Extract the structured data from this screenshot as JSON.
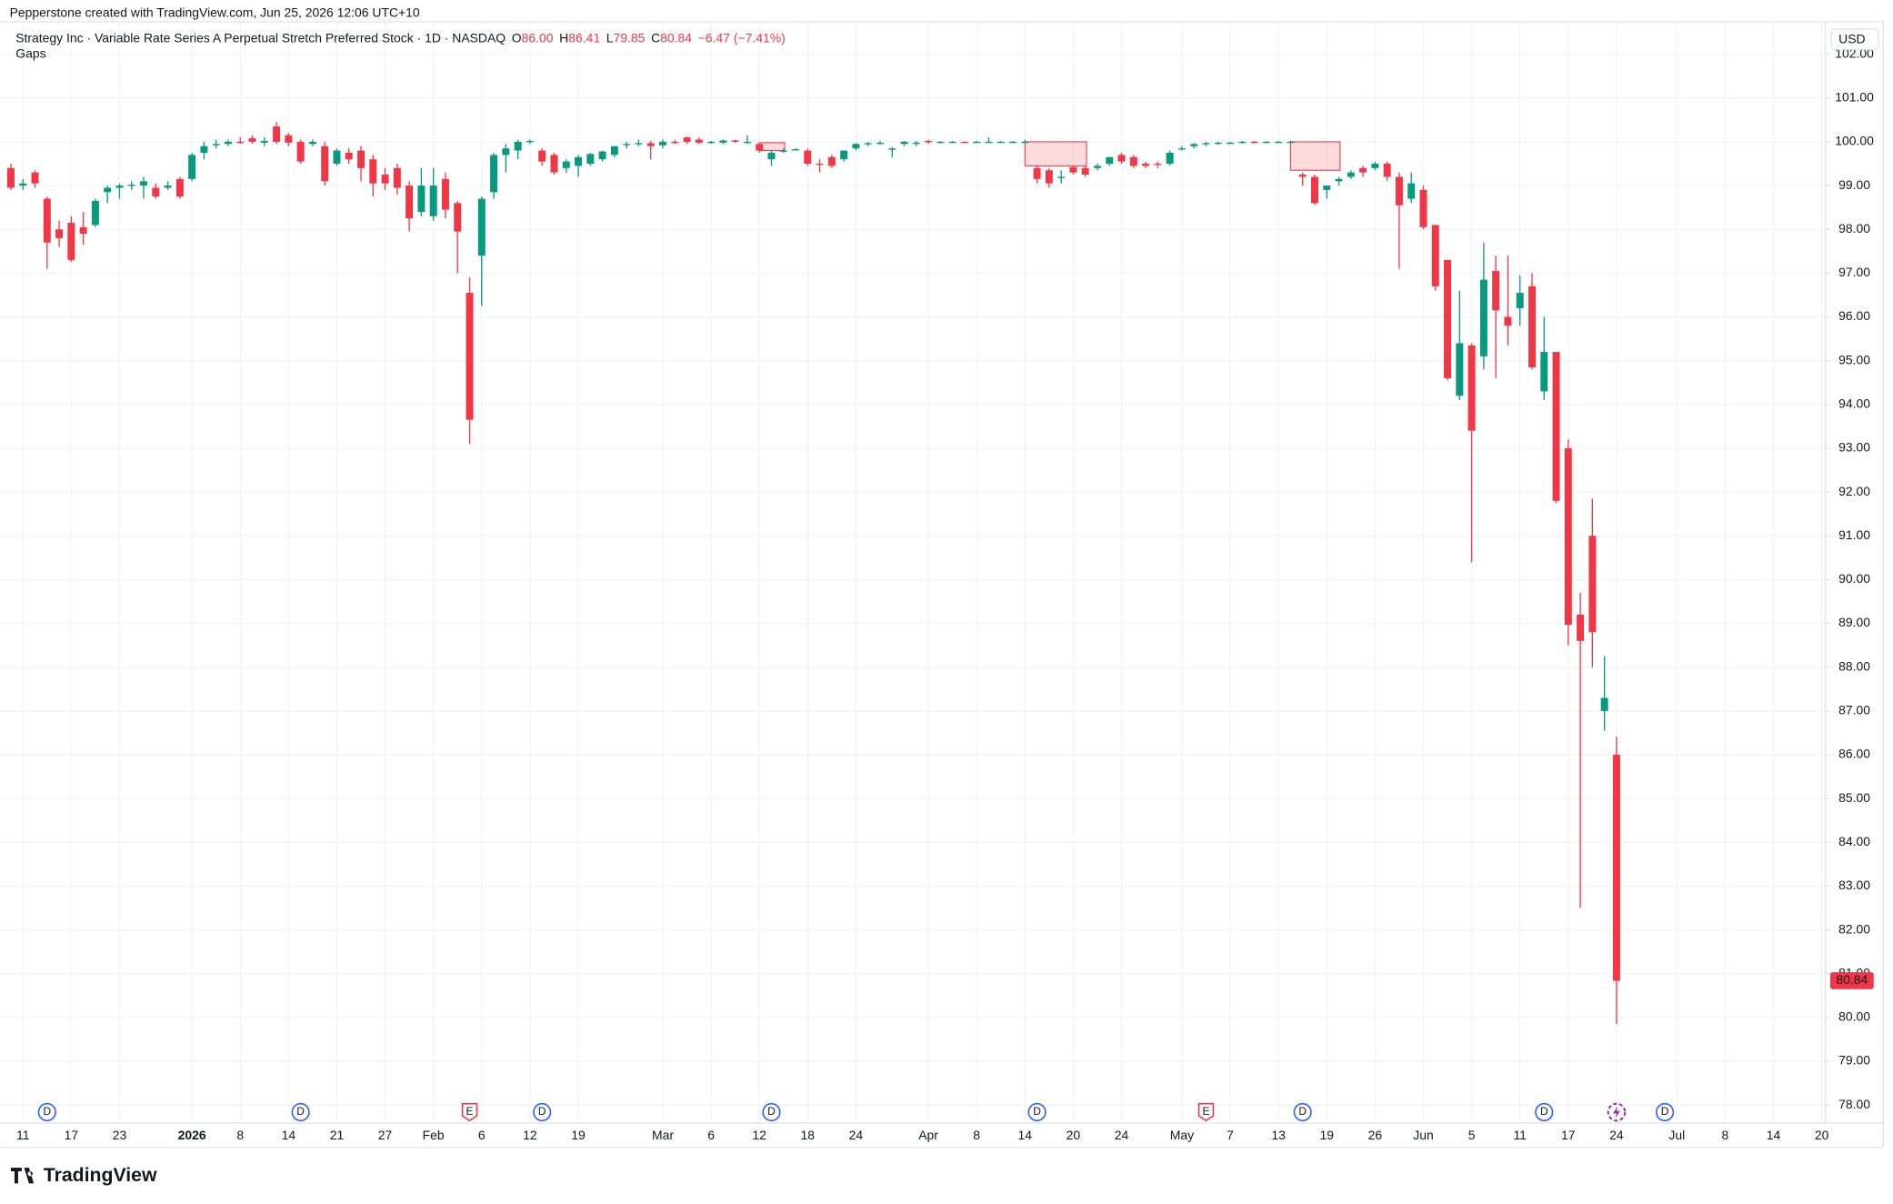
{
  "header": {
    "credit": "Pepperstone created with TradingView.com, Jun 25, 2026 12:06 UTC+10",
    "logo": "TradingView"
  },
  "chart_data": {
    "type": "candlestick",
    "title": "Strategy Inc · Variable Rate Series A Perpetual Stretch Preferred Stock · 1D · NASDAQ",
    "legend": {
      "open_key": "O",
      "open": "86.00",
      "high_key": "H",
      "high": "86.41",
      "low_key": "L",
      "low": "79.85",
      "close_key": "C",
      "close": "80.84",
      "change": "−6.47 (−7.41%)"
    },
    "indicator": "Gaps",
    "currency": "USD",
    "up_color": "#089981",
    "down_color": "#f23645",
    "gap_color": "#f23645",
    "grid": true,
    "xlim": [
      -0.9,
      150.3
    ],
    "ylim": [
      77.59,
      102.63
    ],
    "yticks": [
      {
        "value": 78,
        "label": "78.00"
      },
      {
        "value": 79,
        "label": "79.00"
      },
      {
        "value": 80,
        "label": "80.00"
      },
      {
        "value": 81,
        "label": "81.00"
      },
      {
        "value": 82,
        "label": "82.00"
      },
      {
        "value": 83,
        "label": "83.00"
      },
      {
        "value": 84,
        "label": "84.00"
      },
      {
        "value": 85,
        "label": "85.00"
      },
      {
        "value": 86,
        "label": "86.00"
      },
      {
        "value": 87,
        "label": "87.00"
      },
      {
        "value": 88,
        "label": "88.00"
      },
      {
        "value": 89,
        "label": "89.00"
      },
      {
        "value": 90,
        "label": "90.00"
      },
      {
        "value": 91,
        "label": "91.00"
      },
      {
        "value": 92,
        "label": "92.00"
      },
      {
        "value": 93,
        "label": "93.00"
      },
      {
        "value": 94,
        "label": "94.00"
      },
      {
        "value": 95,
        "label": "95.00"
      },
      {
        "value": 96,
        "label": "96.00"
      },
      {
        "value": 97,
        "label": "97.00"
      },
      {
        "value": 98,
        "label": "98.00"
      },
      {
        "value": 99,
        "label": "99.00"
      },
      {
        "value": 100,
        "label": "100.00"
      },
      {
        "value": 101,
        "label": "101.00"
      },
      {
        "value": 102,
        "label": "102.00"
      }
    ],
    "xticks": [
      {
        "value": 1,
        "label": "11"
      },
      {
        "value": 5,
        "label": "17"
      },
      {
        "value": 9,
        "label": "23"
      },
      {
        "value": 15,
        "label": "2026"
      },
      {
        "value": 19,
        "label": "8"
      },
      {
        "value": 23,
        "label": "14"
      },
      {
        "value": 27,
        "label": "21"
      },
      {
        "value": 31,
        "label": "27"
      },
      {
        "value": 35,
        "label": "Feb"
      },
      {
        "value": 39,
        "label": "6"
      },
      {
        "value": 43,
        "label": "12"
      },
      {
        "value": 47,
        "label": "19"
      },
      {
        "value": 54,
        "label": "Mar"
      },
      {
        "value": 58,
        "label": "6"
      },
      {
        "value": 62,
        "label": "12"
      },
      {
        "value": 66,
        "label": "18"
      },
      {
        "value": 70,
        "label": "24"
      },
      {
        "value": 76,
        "label": "Apr"
      },
      {
        "value": 80,
        "label": "8"
      },
      {
        "value": 84,
        "label": "14"
      },
      {
        "value": 88,
        "label": "20"
      },
      {
        "value": 92,
        "label": "24"
      },
      {
        "value": 97,
        "label": "May"
      },
      {
        "value": 101,
        "label": "7"
      },
      {
        "value": 105,
        "label": "13"
      },
      {
        "value": 109,
        "label": "19"
      },
      {
        "value": 113,
        "label": "26"
      },
      {
        "value": 117,
        "label": "Jun"
      },
      {
        "value": 121,
        "label": "5"
      },
      {
        "value": 125,
        "label": "11"
      },
      {
        "value": 129,
        "label": "17"
      },
      {
        "value": 133,
        "label": "24"
      },
      {
        "value": 138,
        "label": "Jul"
      },
      {
        "value": 142,
        "label": "8"
      },
      {
        "value": 146,
        "label": "14"
      },
      {
        "value": 150,
        "label": "20"
      }
    ],
    "ohlc": [
      [
        99.4,
        99.5,
        98.9,
        98.95
      ],
      [
        99.0,
        99.15,
        98.9,
        99.05
      ],
      [
        99.3,
        99.35,
        98.95,
        99.05
      ],
      [
        98.7,
        98.75,
        97.1,
        97.7
      ],
      [
        98.0,
        98.2,
        97.6,
        97.8
      ],
      [
        98.15,
        98.3,
        97.25,
        97.3
      ],
      [
        98.05,
        98.4,
        97.65,
        97.9
      ],
      [
        98.1,
        98.7,
        98.05,
        98.65
      ],
      [
        98.85,
        99.0,
        98.6,
        98.95
      ],
      [
        98.95,
        99.05,
        98.7,
        99.0
      ],
      [
        99.0,
        99.1,
        98.9,
        99.02
      ],
      [
        99.0,
        99.2,
        98.7,
        99.1
      ],
      [
        98.95,
        99.05,
        98.7,
        98.75
      ],
      [
        98.95,
        99.1,
        98.9,
        99.0
      ],
      [
        99.15,
        99.2,
        98.7,
        98.75
      ],
      [
        99.15,
        99.75,
        99.1,
        99.7
      ],
      [
        99.75,
        100.0,
        99.6,
        99.9
      ],
      [
        99.92,
        100.05,
        99.85,
        99.95
      ],
      [
        99.95,
        100.05,
        99.9,
        100.0
      ],
      [
        100.0,
        100.1,
        99.95,
        99.98
      ],
      [
        100.08,
        100.15,
        99.95,
        100.0
      ],
      [
        99.98,
        100.1,
        99.9,
        100.02
      ],
      [
        100.35,
        100.45,
        99.95,
        100.0
      ],
      [
        100.15,
        100.2,
        99.9,
        99.98
      ],
      [
        100.0,
        100.05,
        99.5,
        99.55
      ],
      [
        99.95,
        100.05,
        99.9,
        100.0
      ],
      [
        99.9,
        100.0,
        99.0,
        99.1
      ],
      [
        99.5,
        99.85,
        99.45,
        99.8
      ],
      [
        99.75,
        99.85,
        99.5,
        99.6
      ],
      [
        99.8,
        99.9,
        99.1,
        99.4
      ],
      [
        99.6,
        99.7,
        98.75,
        99.05
      ],
      [
        99.25,
        99.4,
        98.9,
        99.05
      ],
      [
        99.4,
        99.5,
        98.8,
        98.95
      ],
      [
        99.0,
        99.1,
        97.95,
        98.25
      ],
      [
        98.4,
        99.4,
        98.3,
        99.0
      ],
      [
        98.3,
        99.4,
        98.2,
        99.0
      ],
      [
        99.15,
        99.3,
        98.25,
        98.45
      ],
      [
        98.6,
        98.65,
        97.0,
        97.95
      ],
      [
        96.55,
        96.9,
        93.1,
        93.65
      ],
      [
        97.4,
        98.75,
        96.25,
        98.7
      ],
      [
        98.85,
        99.75,
        98.7,
        99.7
      ],
      [
        99.7,
        99.95,
        99.3,
        99.85
      ],
      [
        99.8,
        100.05,
        99.6,
        100.0
      ],
      [
        100.0,
        100.05,
        99.95,
        100.02
      ],
      [
        99.8,
        99.85,
        99.45,
        99.55
      ],
      [
        99.7,
        99.75,
        99.25,
        99.3
      ],
      [
        99.4,
        99.6,
        99.3,
        99.55
      ],
      [
        99.45,
        99.7,
        99.2,
        99.65
      ],
      [
        99.5,
        99.75,
        99.45,
        99.72
      ],
      [
        99.6,
        99.8,
        99.55,
        99.78
      ],
      [
        99.7,
        99.9,
        99.65,
        99.9
      ],
      [
        99.95,
        100.0,
        99.85,
        99.95
      ],
      [
        99.95,
        100.05,
        99.9,
        99.97
      ],
      [
        99.97,
        100.02,
        99.6,
        99.9
      ],
      [
        99.92,
        100.05,
        99.85,
        100.0
      ],
      [
        100.0,
        100.05,
        99.95,
        99.98
      ],
      [
        100.1,
        100.12,
        99.95,
        100.0
      ],
      [
        100.05,
        100.1,
        99.95,
        99.98
      ],
      [
        99.98,
        100.02,
        99.95,
        100.0
      ],
      [
        99.98,
        100.05,
        99.95,
        100.03
      ],
      [
        100.03,
        100.05,
        99.98,
        100.0
      ],
      [
        100.0,
        100.15,
        99.95,
        100.0
      ],
      [
        99.95,
        99.98,
        99.75,
        99.8
      ],
      [
        99.6,
        99.8,
        99.45,
        99.75
      ],
      [
        99.8,
        99.85,
        99.75,
        99.8
      ],
      [
        99.82,
        99.85,
        99.8,
        99.83
      ],
      [
        99.8,
        99.85,
        99.45,
        99.5
      ],
      [
        99.5,
        99.6,
        99.3,
        99.48
      ],
      [
        99.65,
        99.7,
        99.4,
        99.45
      ],
      [
        99.6,
        99.8,
        99.55,
        99.8
      ],
      [
        99.85,
        99.97,
        99.8,
        99.95
      ],
      [
        99.95,
        100.0,
        99.9,
        99.97
      ],
      [
        99.97,
        100.02,
        99.93,
        99.98
      ],
      [
        99.82,
        99.88,
        99.65,
        99.85
      ],
      [
        99.95,
        100.02,
        99.9,
        100.0
      ],
      [
        99.97,
        100.02,
        99.9,
        99.98
      ],
      [
        100.02,
        100.05,
        99.95,
        99.99
      ],
      [
        99.99,
        100.02,
        99.97,
        100.0
      ],
      [
        100.0,
        100.02,
        99.98,
        100.0
      ],
      [
        100.0,
        100.01,
        99.97,
        99.99
      ],
      [
        99.99,
        100.02,
        99.98,
        100.0
      ],
      [
        100.0,
        100.1,
        99.98,
        100.0
      ],
      [
        100.0,
        100.02,
        99.98,
        100.0
      ],
      [
        100.0,
        100.02,
        99.98,
        100.0
      ],
      [
        100.0,
        100.05,
        99.98,
        100.0
      ],
      [
        99.4,
        99.45,
        99.05,
        99.15
      ],
      [
        99.35,
        99.4,
        98.95,
        99.05
      ],
      [
        99.2,
        99.35,
        99.05,
        99.2
      ],
      [
        99.42,
        99.45,
        99.25,
        99.3
      ],
      [
        99.4,
        99.45,
        99.2,
        99.25
      ],
      [
        99.4,
        99.5,
        99.35,
        99.45
      ],
      [
        99.5,
        99.65,
        99.45,
        99.65
      ],
      [
        99.7,
        99.75,
        99.5,
        99.55
      ],
      [
        99.65,
        99.7,
        99.4,
        99.45
      ],
      [
        99.5,
        99.55,
        99.4,
        99.45
      ],
      [
        99.5,
        99.55,
        99.4,
        99.48
      ],
      [
        99.5,
        99.8,
        99.45,
        99.75
      ],
      [
        99.85,
        99.9,
        99.8,
        99.85
      ],
      [
        99.9,
        99.97,
        99.85,
        99.95
      ],
      [
        99.95,
        100.0,
        99.9,
        99.97
      ],
      [
        99.97,
        100.0,
        99.93,
        99.98
      ],
      [
        99.98,
        100.0,
        99.95,
        99.98
      ],
      [
        99.98,
        100.02,
        99.96,
        100.0
      ],
      [
        100.0,
        100.02,
        99.97,
        99.99
      ],
      [
        99.99,
        100.02,
        99.97,
        100.0
      ],
      [
        100.0,
        100.02,
        99.98,
        100.0
      ],
      [
        100.0,
        100.03,
        99.98,
        100.0
      ],
      [
        99.25,
        99.3,
        99.0,
        99.2
      ],
      [
        99.2,
        99.25,
        98.55,
        98.6
      ],
      [
        98.9,
        99.0,
        98.7,
        99.0
      ],
      [
        99.1,
        99.2,
        99.0,
        99.15
      ],
      [
        99.2,
        99.35,
        99.15,
        99.3
      ],
      [
        99.4,
        99.45,
        99.2,
        99.3
      ],
      [
        99.4,
        99.55,
        99.35,
        99.5
      ],
      [
        99.5,
        99.55,
        99.1,
        99.2
      ],
      [
        99.2,
        99.3,
        97.1,
        98.55
      ],
      [
        98.7,
        99.3,
        98.6,
        99.05
      ],
      [
        98.9,
        99.0,
        98.0,
        98.05
      ],
      [
        98.1,
        98.1,
        96.6,
        96.7
      ],
      [
        97.3,
        97.3,
        94.55,
        94.6
      ],
      [
        94.2,
        96.6,
        94.1,
        95.4
      ],
      [
        95.35,
        95.4,
        90.4,
        93.4
      ],
      [
        95.1,
        97.7,
        94.8,
        96.85
      ],
      [
        97.05,
        97.4,
        94.6,
        96.15
      ],
      [
        96.0,
        97.4,
        95.35,
        95.8
      ],
      [
        96.2,
        96.95,
        95.8,
        96.55
      ],
      [
        96.7,
        97.0,
        94.8,
        94.85
      ],
      [
        94.3,
        96.0,
        94.1,
        95.2
      ],
      [
        95.2,
        95.2,
        91.75,
        91.8
      ],
      [
        93.0,
        93.2,
        88.5,
        88.97
      ],
      [
        89.2,
        89.7,
        82.5,
        88.6
      ],
      [
        91.0,
        91.85,
        88.0,
        88.8
      ],
      [
        87.0,
        88.25,
        86.55,
        87.3
      ],
      [
        86.0,
        86.41,
        79.85,
        80.84
      ]
    ],
    "gaps": [
      {
        "start": 62,
        "end": 64,
        "high": 99.98,
        "low": 99.8
      },
      {
        "start": 84,
        "end": 89,
        "high": 100.0,
        "low": 99.45
      },
      {
        "start": 106,
        "end": 110,
        "high": 100.0,
        "low": 99.35
      }
    ],
    "events": [
      {
        "x": 3,
        "label": "D"
      },
      {
        "x": 24,
        "label": "D"
      },
      {
        "x": 38,
        "label": "E"
      },
      {
        "x": 44,
        "label": "D"
      },
      {
        "x": 63,
        "label": "D"
      },
      {
        "x": 85,
        "label": "D"
      },
      {
        "x": 99,
        "label": "E"
      },
      {
        "x": 107,
        "label": "D"
      },
      {
        "x": 127,
        "label": "D"
      },
      {
        "x": 137,
        "label": "D"
      }
    ]
  }
}
